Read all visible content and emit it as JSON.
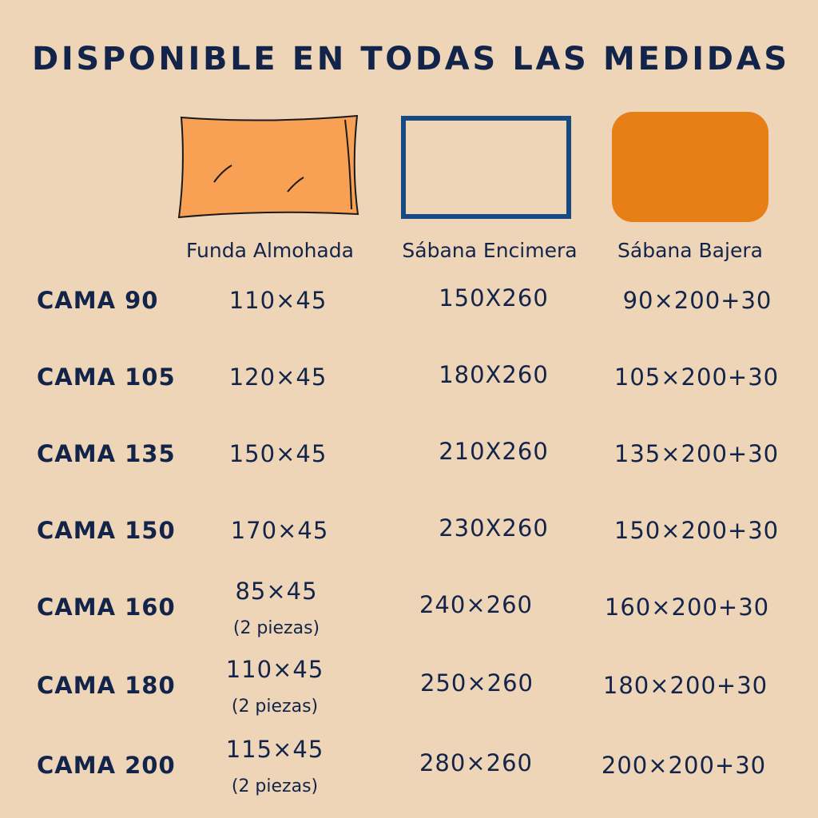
{
  "header": {
    "title": "DISPONIBLE EN TODAS LAS MEDIDAS"
  },
  "columns": [
    "Funda Almohada",
    "Sábana Encimera",
    "Sábana Bajera"
  ],
  "rows": [
    {
      "label": "CAMA 90",
      "funda": "110×45",
      "encimera": "150X260",
      "bajera": "90×200+30"
    },
    {
      "label": "CAMA 105",
      "funda": "120×45",
      "encimera": "180X260",
      "bajera": "105×200+30"
    },
    {
      "label": "CAMA 135",
      "funda": "150×45",
      "encimera": "210X260",
      "bajera": "135×200+30"
    },
    {
      "label": "CAMA 150",
      "funda": "170×45",
      "encimera": "230X260",
      "bajera": "150×200+30"
    },
    {
      "label": "CAMA 160",
      "funda": "85×45",
      "nota": "(2 piezas)",
      "encimera": "240×260",
      "bajera": "160×200+30"
    },
    {
      "label": "CAMA 180",
      "funda": "110×45",
      "nota": "(2 piezas)",
      "encimera": "250×260",
      "bajera": "180×200+30"
    },
    {
      "label": "CAMA 200",
      "funda": "115×45",
      "nota": "(2 piezas)",
      "encimera": "280×260",
      "bajera": "200×200+30"
    }
  ]
}
